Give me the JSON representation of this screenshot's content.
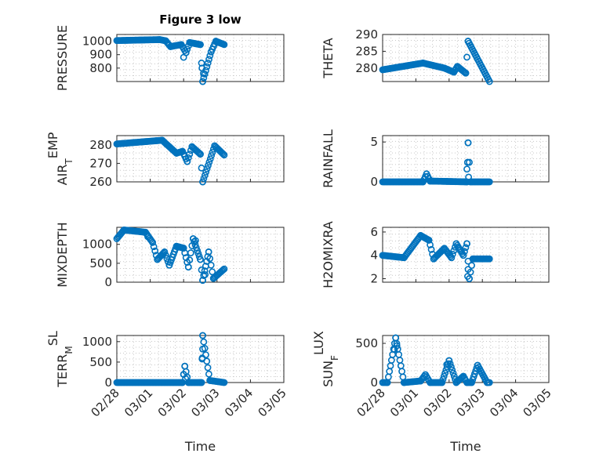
{
  "chart_data": [
    {
      "type": "scatter",
      "title": "Figure 3 low",
      "ylabel": "PRESSURE",
      "ylabel_sub": "",
      "ylim": [
        700,
        1050
      ],
      "yticks": [
        800,
        900,
        1000
      ],
      "xlim": [
        0,
        7
      ],
      "xticks": [
        "02/28",
        "03/01",
        "03/02",
        "03/03",
        "03/04",
        "03/05"
      ],
      "show_xticks": false,
      "segments": [
        {
          "x": [
            0,
            1.8
          ],
          "y": [
            1005,
            1012
          ]
        },
        {
          "x": [
            1.8,
            2.05
          ],
          "y": [
            1012,
            1003
          ]
        },
        {
          "x": [
            2.05,
            2.25
          ],
          "y": [
            1003,
            960
          ]
        },
        {
          "x": [
            2.25,
            2.7
          ],
          "y": [
            960,
            975
          ]
        },
        {
          "x": [
            2.7,
            2.9
          ],
          "y": [
            975,
            915
          ]
        },
        {
          "x": [
            2.9,
            3.05
          ],
          "y": [
            915,
            990
          ]
        },
        {
          "x": [
            3.05,
            3.5
          ],
          "y": [
            990,
            975
          ]
        },
        {
          "x": [
            3.5,
            3.6
          ],
          "y": [
            975,
            700
          ]
        },
        {
          "x": [
            3.6,
            3.95
          ],
          "y": [
            700,
            920
          ]
        },
        {
          "x": [
            3.95,
            4.15
          ],
          "y": [
            920,
            1000
          ]
        },
        {
          "x": [
            4.15,
            4.5
          ],
          "y": [
            1000,
            975
          ]
        }
      ],
      "extra": [
        {
          "x": [
            2.8
          ],
          "y": [
            880
          ]
        },
        {
          "x": [
            3.57
          ],
          "y": [
            800
          ]
        },
        {
          "x": [
            3.63
          ],
          "y": [
            760
          ]
        }
      ]
    },
    {
      "type": "scatter",
      "ylabel": "THETA",
      "ylabel_sub": "",
      "ylim": [
        276,
        290
      ],
      "yticks": [
        280,
        285,
        290
      ],
      "xlim": [
        0,
        7
      ],
      "xticks": [
        "02/28",
        "03/01",
        "03/02",
        "03/03",
        "03/04",
        "03/05"
      ],
      "show_xticks": false,
      "segments": [
        {
          "x": [
            0,
            1.7
          ],
          "y": [
            279.5,
            281.5
          ]
        },
        {
          "x": [
            1.7,
            2.6
          ],
          "y": [
            281.5,
            280
          ]
        },
        {
          "x": [
            2.6,
            3.0
          ],
          "y": [
            280,
            278.8
          ]
        },
        {
          "x": [
            3.0,
            3.15
          ],
          "y": [
            278.8,
            280.5
          ]
        },
        {
          "x": [
            3.15,
            3.5
          ],
          "y": [
            280.5,
            278.5
          ]
        },
        {
          "x": [
            3.5,
            3.6
          ],
          "y": [
            278.5,
            288
          ]
        },
        {
          "x": [
            3.6,
            4.5
          ],
          "y": [
            288,
            276
          ]
        }
      ],
      "extra": []
    },
    {
      "type": "scatter",
      "ylabel": "AIR",
      "ylabel_sub": "T",
      "ylabel_rest": "EMP",
      "ylim": [
        260,
        285
      ],
      "yticks": [
        260,
        270,
        280
      ],
      "xlim": [
        0,
        7
      ],
      "xticks": [
        "02/28",
        "03/01",
        "03/02",
        "03/03",
        "03/04",
        "03/05"
      ],
      "show_xticks": false,
      "segments": [
        {
          "x": [
            0,
            1.9
          ],
          "y": [
            280.5,
            282.5
          ]
        },
        {
          "x": [
            1.9,
            2.5
          ],
          "y": [
            282.5,
            275.5
          ]
        },
        {
          "x": [
            2.5,
            2.75
          ],
          "y": [
            275.5,
            276.5
          ]
        },
        {
          "x": [
            2.75,
            2.95
          ],
          "y": [
            276.5,
            271
          ]
        },
        {
          "x": [
            2.95,
            3.15
          ],
          "y": [
            271,
            279
          ]
        },
        {
          "x": [
            3.15,
            3.5
          ],
          "y": [
            279,
            275
          ]
        },
        {
          "x": [
            3.5,
            3.6
          ],
          "y": [
            275,
            260
          ]
        },
        {
          "x": [
            3.6,
            4.1
          ],
          "y": [
            260,
            279.5
          ]
        },
        {
          "x": [
            4.1,
            4.5
          ],
          "y": [
            279.5,
            274.5
          ]
        }
      ],
      "extra": []
    },
    {
      "type": "scatter",
      "ylabel": "RAINFALL",
      "ylabel_sub": "",
      "ylim": [
        0,
        5.8
      ],
      "yticks": [
        0,
        5
      ],
      "xlim": [
        0,
        7
      ],
      "xticks": [
        "02/28",
        "03/01",
        "03/02",
        "03/03",
        "03/04",
        "03/05"
      ],
      "show_xticks": false,
      "segments": [
        {
          "x": [
            0,
            1.7
          ],
          "y": [
            0,
            0
          ]
        },
        {
          "x": [
            1.7,
            1.85
          ],
          "y": [
            0,
            1.0
          ]
        },
        {
          "x": [
            1.85,
            2.0
          ],
          "y": [
            1.0,
            0.1
          ]
        },
        {
          "x": [
            2.0,
            3.55
          ],
          "y": [
            0.1,
            0
          ]
        },
        {
          "x": [
            3.55,
            3.6
          ],
          "y": [
            0,
            4.9
          ]
        },
        {
          "x": [
            3.6,
            3.7
          ],
          "y": [
            4.9,
            0
          ]
        },
        {
          "x": [
            3.7,
            4.5
          ],
          "y": [
            0,
            0
          ]
        }
      ],
      "extra": [
        {
          "x": [
            3.55
          ],
          "y": [
            1.6
          ]
        },
        {
          "x": [
            3.62
          ],
          "y": [
            0.6
          ]
        }
      ]
    },
    {
      "type": "scatter",
      "ylabel": "MIXDEPTH",
      "ylabel_sub": "",
      "ylim": [
        0,
        1450
      ],
      "yticks": [
        0,
        500,
        1000
      ],
      "xlim": [
        0,
        7
      ],
      "xticks": [
        "02/28",
        "03/01",
        "03/02",
        "03/03",
        "03/04",
        "03/05"
      ],
      "show_xticks": false,
      "segments": [
        {
          "x": [
            0,
            0.3
          ],
          "y": [
            1150,
            1380
          ]
        },
        {
          "x": [
            0.3,
            1.2
          ],
          "y": [
            1380,
            1320
          ]
        },
        {
          "x": [
            1.2,
            1.5
          ],
          "y": [
            1320,
            1050
          ]
        },
        {
          "x": [
            1.5,
            1.7
          ],
          "y": [
            1050,
            600
          ]
        },
        {
          "x": [
            1.7,
            2.0
          ],
          "y": [
            600,
            800
          ]
        },
        {
          "x": [
            2.0,
            2.2
          ],
          "y": [
            800,
            450
          ]
        },
        {
          "x": [
            2.2,
            2.5
          ],
          "y": [
            450,
            950
          ]
        },
        {
          "x": [
            2.5,
            2.8
          ],
          "y": [
            950,
            900
          ]
        },
        {
          "x": [
            2.8,
            3.0
          ],
          "y": [
            900,
            400
          ]
        },
        {
          "x": [
            3.0,
            3.2
          ],
          "y": [
            400,
            1150
          ]
        },
        {
          "x": [
            3.2,
            3.5
          ],
          "y": [
            1150,
            600
          ]
        },
        {
          "x": [
            3.5,
            3.6
          ],
          "y": [
            600,
            50
          ]
        },
        {
          "x": [
            3.6,
            3.85
          ],
          "y": [
            50,
            800
          ]
        },
        {
          "x": [
            3.85,
            4.05
          ],
          "y": [
            800,
            100
          ]
        },
        {
          "x": [
            4.05,
            4.5
          ],
          "y": [
            100,
            350
          ]
        }
      ],
      "extra": [
        {
          "x": [
            1.3
          ],
          "y": [
            1200
          ]
        },
        {
          "x": [
            3.3
          ],
          "y": [
            1100
          ]
        },
        {
          "x": [
            3.7
          ],
          "y": [
            200
          ]
        }
      ]
    },
    {
      "type": "scatter",
      "ylabel": "H2OMIXRA",
      "ylabel_sub": "",
      "ylim": [
        1.7,
        6.4
      ],
      "yticks": [
        2,
        4,
        6
      ],
      "xlim": [
        0,
        7
      ],
      "xticks": [
        "02/28",
        "03/01",
        "03/02",
        "03/03",
        "03/04",
        "03/05"
      ],
      "show_xticks": false,
      "segments": [
        {
          "x": [
            0,
            0.9
          ],
          "y": [
            4.0,
            3.8
          ]
        },
        {
          "x": [
            0.9,
            1.6
          ],
          "y": [
            3.8,
            5.7
          ]
        },
        {
          "x": [
            1.6,
            1.95
          ],
          "y": [
            5.7,
            5.3
          ]
        },
        {
          "x": [
            1.95,
            2.15
          ],
          "y": [
            5.3,
            3.7
          ]
        },
        {
          "x": [
            2.15,
            2.6
          ],
          "y": [
            3.7,
            4.6
          ]
        },
        {
          "x": [
            2.6,
            2.9
          ],
          "y": [
            4.6,
            3.8
          ]
        },
        {
          "x": [
            2.9,
            3.1
          ],
          "y": [
            3.8,
            5.0
          ]
        },
        {
          "x": [
            3.1,
            3.4
          ],
          "y": [
            5.0,
            4.0
          ]
        },
        {
          "x": [
            3.4,
            3.55
          ],
          "y": [
            4.0,
            5.0
          ]
        },
        {
          "x": [
            3.55,
            3.65
          ],
          "y": [
            5.0,
            2.0
          ]
        },
        {
          "x": [
            3.65,
            3.8
          ],
          "y": [
            2.0,
            3.7
          ]
        },
        {
          "x": [
            3.8,
            4.5
          ],
          "y": [
            3.7,
            3.7
          ]
        }
      ],
      "extra": [
        {
          "x": [
            3.6
          ],
          "y": [
            2.8
          ]
        },
        {
          "x": [
            3.58
          ],
          "y": [
            2.2
          ]
        }
      ]
    },
    {
      "type": "scatter",
      "ylabel": "TERR",
      "ylabel_sub": "M",
      "ylabel_rest": "SL",
      "ylim": [
        0,
        1150
      ],
      "yticks": [
        0,
        500,
        1000
      ],
      "xlim": [
        0,
        7
      ],
      "xticks": [
        "02/28",
        "03/01",
        "03/02",
        "03/03",
        "03/04",
        "03/05"
      ],
      "show_xticks": true,
      "segments": [
        {
          "x": [
            0,
            2.75
          ],
          "y": [
            0,
            0
          ]
        },
        {
          "x": [
            2.75,
            2.85
          ],
          "y": [
            0,
            400
          ]
        },
        {
          "x": [
            2.85,
            3.0
          ],
          "y": [
            400,
            0
          ]
        },
        {
          "x": [
            3.0,
            3.55
          ],
          "y": [
            0,
            0
          ]
        },
        {
          "x": [
            3.55,
            3.6
          ],
          "y": [
            0,
            1150
          ]
        },
        {
          "x": [
            3.6,
            3.9
          ],
          "y": [
            1150,
            50
          ]
        },
        {
          "x": [
            3.9,
            4.5
          ],
          "y": [
            50,
            0
          ]
        }
      ],
      "extra": [
        {
          "x": [
            3.6
          ],
          "y": [
            820
          ]
        },
        {
          "x": [
            3.58
          ],
          "y": [
            600
          ]
        },
        {
          "x": [
            2.8
          ],
          "y": [
            200
          ]
        },
        {
          "x": [
            2.88
          ],
          "y": [
            100
          ]
        }
      ]
    },
    {
      "type": "scatter",
      "ylabel": "SUN",
      "ylabel_sub": "F",
      "ylabel_rest": "LUX",
      "ylim": [
        0,
        600
      ],
      "yticks": [
        0,
        500
      ],
      "xlim": [
        0,
        7
      ],
      "xticks": [
        "02/28",
        "03/01",
        "03/02",
        "03/03",
        "03/04",
        "03/05"
      ],
      "show_xticks": true,
      "segments": [
        {
          "x": [
            0,
            0.2
          ],
          "y": [
            0,
            0
          ]
        },
        {
          "x": [
            0.2,
            0.55
          ],
          "y": [
            0,
            570
          ]
        },
        {
          "x": [
            0.55,
            0.9
          ],
          "y": [
            570,
            0
          ]
        },
        {
          "x": [
            0.9,
            1.6
          ],
          "y": [
            0,
            20
          ]
        },
        {
          "x": [
            1.6,
            1.8
          ],
          "y": [
            20,
            100
          ]
        },
        {
          "x": [
            1.8,
            2.0
          ],
          "y": [
            100,
            0
          ]
        },
        {
          "x": [
            2.0,
            2.5
          ],
          "y": [
            0,
            0
          ]
        },
        {
          "x": [
            2.5,
            2.8
          ],
          "y": [
            0,
            280
          ]
        },
        {
          "x": [
            2.8,
            3.1
          ],
          "y": [
            280,
            0
          ]
        },
        {
          "x": [
            3.1,
            3.4
          ],
          "y": [
            0,
            80
          ]
        },
        {
          "x": [
            3.4,
            3.55
          ],
          "y": [
            80,
            0
          ]
        },
        {
          "x": [
            3.55,
            3.75
          ],
          "y": [
            0,
            0
          ]
        },
        {
          "x": [
            3.75,
            4.0
          ],
          "y": [
            0,
            220
          ]
        },
        {
          "x": [
            4.0,
            4.4
          ],
          "y": [
            220,
            0
          ]
        },
        {
          "x": [
            4.4,
            4.5
          ],
          "y": [
            0,
            0
          ]
        }
      ],
      "extra": [
        {
          "x": [
            0.5
          ],
          "y": [
            420
          ]
        },
        {
          "x": [
            0.6
          ],
          "y": [
            470
          ]
        },
        {
          "x": [
            2.7
          ],
          "y": [
            230
          ]
        }
      ]
    }
  ],
  "xlabel": "Time"
}
